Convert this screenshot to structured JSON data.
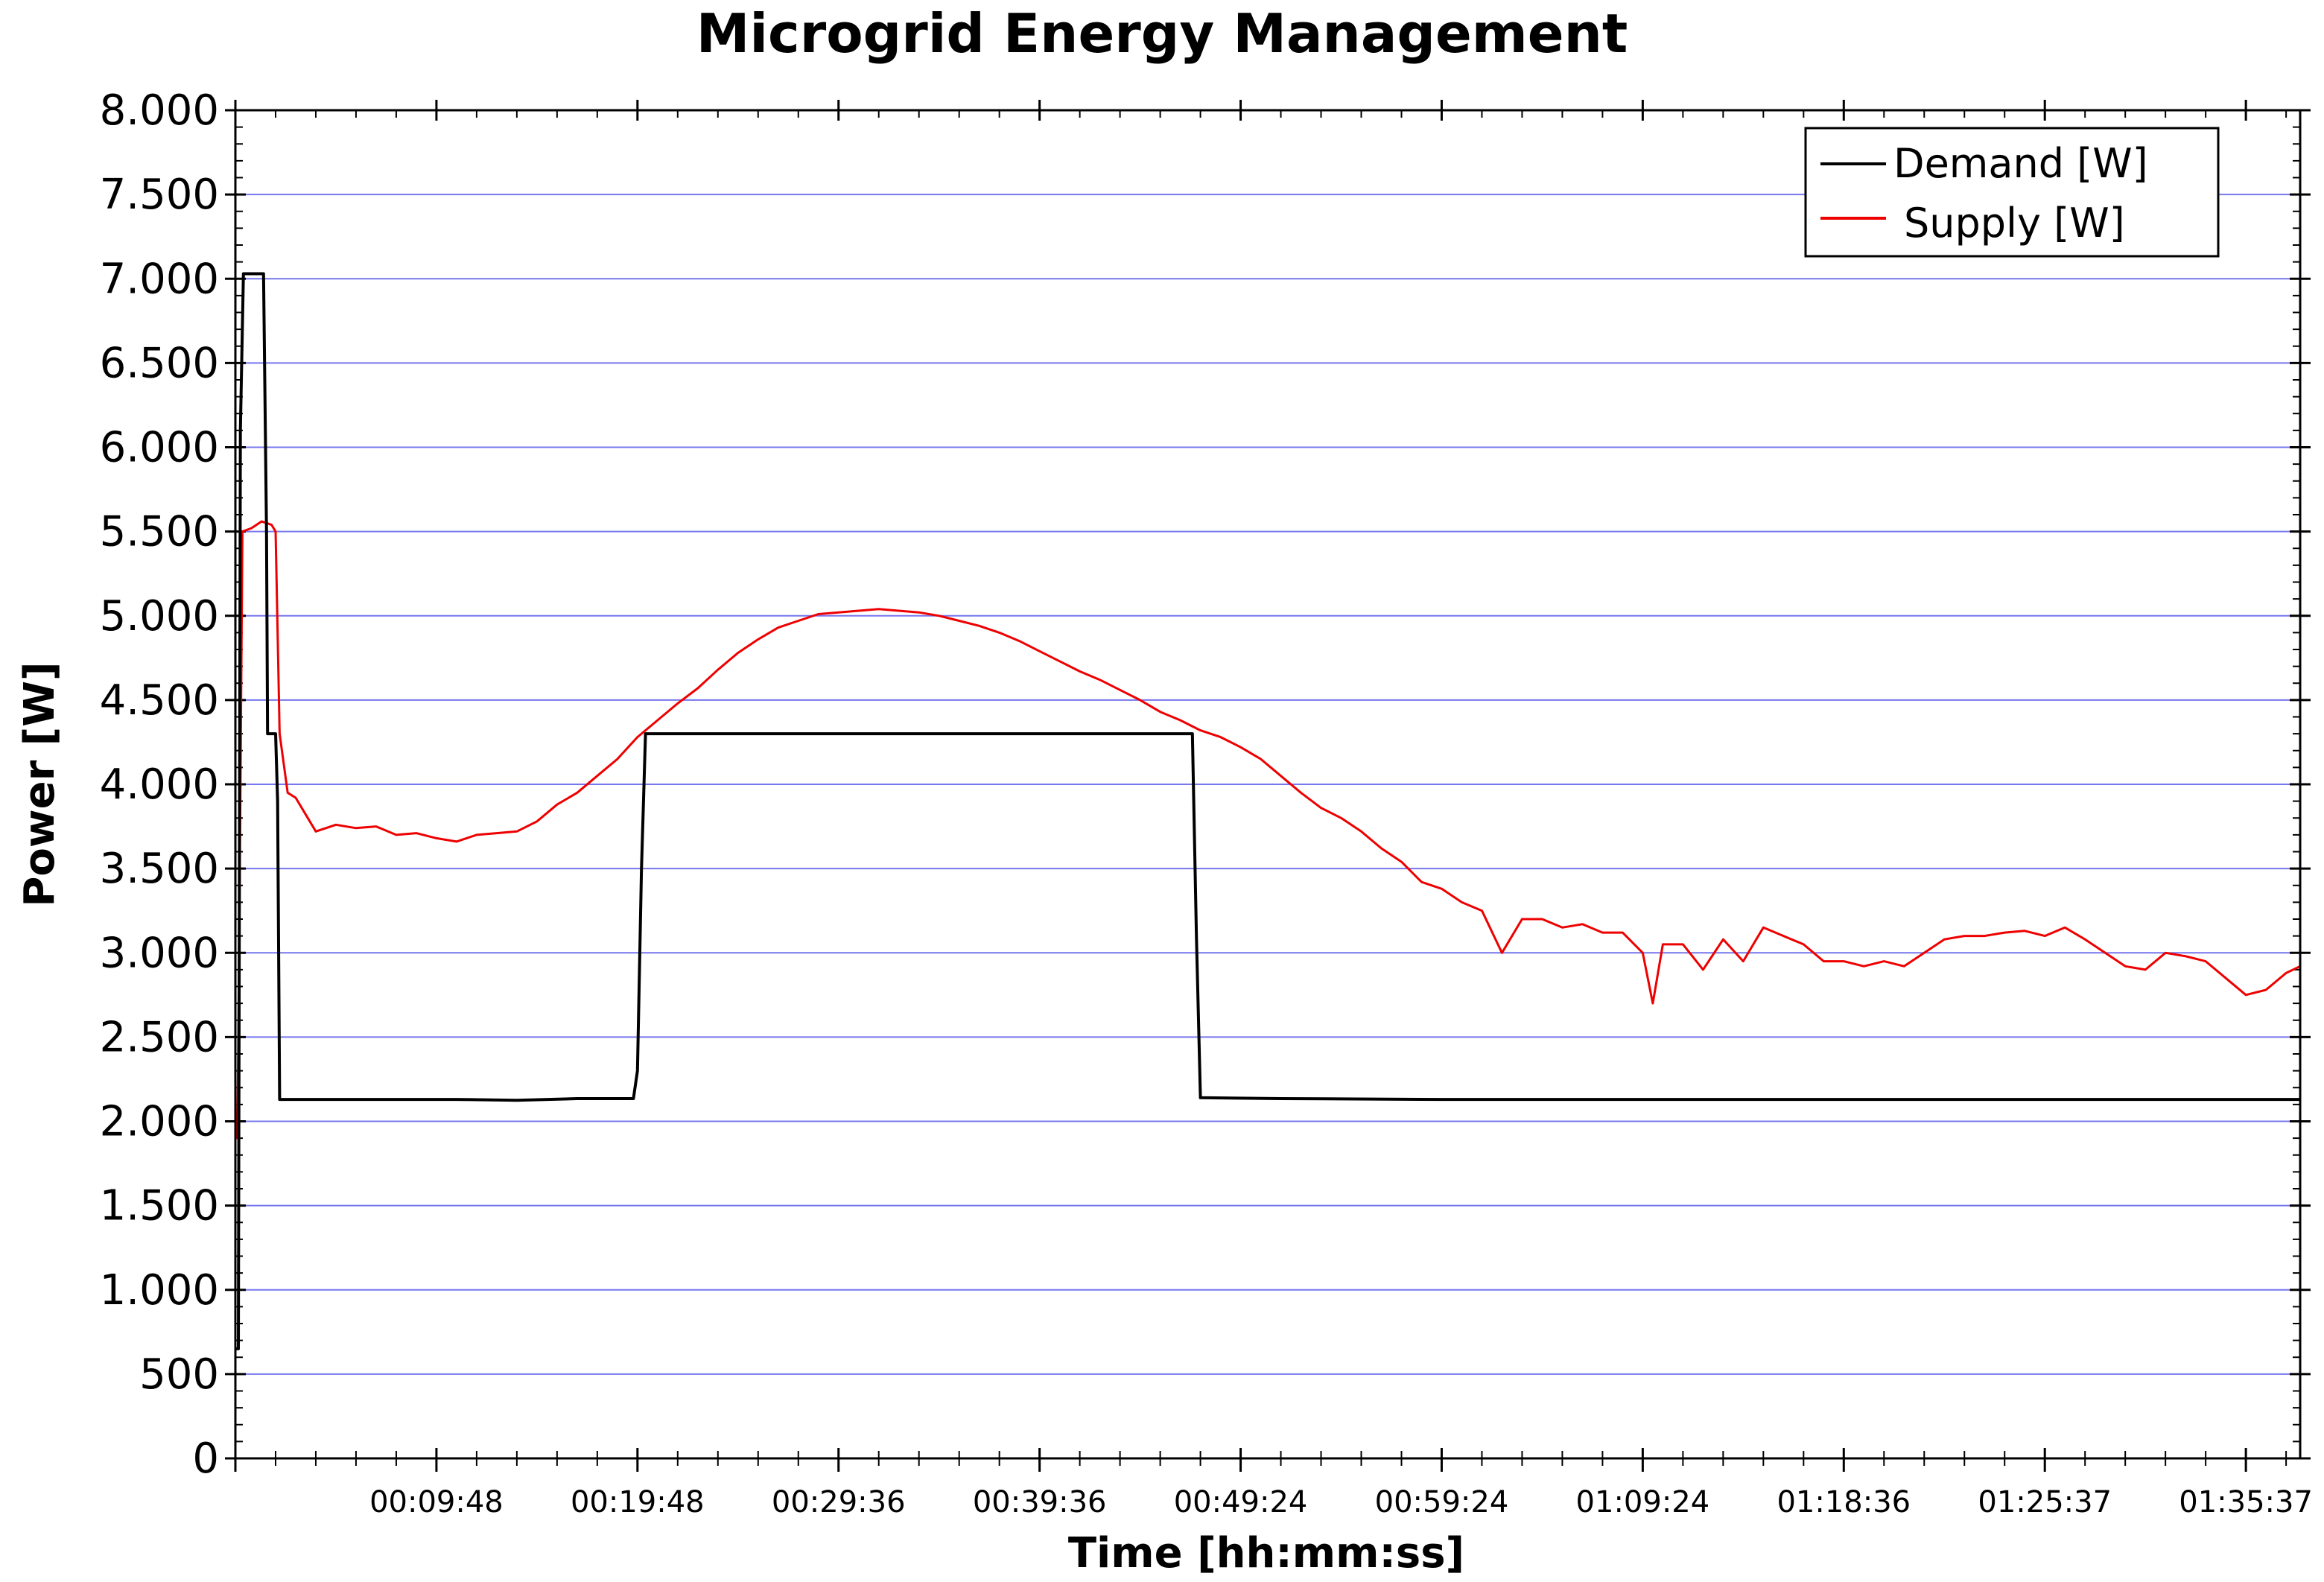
{
  "chart_data": {
    "type": "line",
    "title": "Microgrid Energy Management",
    "xlabel": "Time [hh:mm:ss]",
    "ylabel": "Power [W]",
    "x_unit": "minutes",
    "xlim": [
      0,
      102.7
    ],
    "ylim": [
      0,
      8000
    ],
    "grid": true,
    "grid_color": "#7777ee",
    "legend_position": "top-right",
    "x_ticks": [
      {
        "value": 10.0,
        "label": "00:09:48"
      },
      {
        "value": 20.0,
        "label": "00:19:48"
      },
      {
        "value": 30.0,
        "label": "00:29:36"
      },
      {
        "value": 40.0,
        "label": "00:39:36"
      },
      {
        "value": 50.0,
        "label": "00:49:24"
      },
      {
        "value": 60.0,
        "label": "00:59:24"
      },
      {
        "value": 70.0,
        "label": "01:09:24"
      },
      {
        "value": 80.0,
        "label": "01:18:36"
      },
      {
        "value": 90.0,
        "label": "01:25:37"
      },
      {
        "value": 100.0,
        "label": "01:35:37"
      }
    ],
    "y_ticks": [
      {
        "value": 0,
        "label": "0"
      },
      {
        "value": 500,
        "label": "500"
      },
      {
        "value": 1000,
        "label": "1.000"
      },
      {
        "value": 1500,
        "label": "1.500"
      },
      {
        "value": 2000,
        "label": "2.000"
      },
      {
        "value": 2500,
        "label": "2.500"
      },
      {
        "value": 3000,
        "label": "3.000"
      },
      {
        "value": 3500,
        "label": "3.500"
      },
      {
        "value": 4000,
        "label": "4.000"
      },
      {
        "value": 4500,
        "label": "4.500"
      },
      {
        "value": 5000,
        "label": "5.000"
      },
      {
        "value": 5500,
        "label": "5.500"
      },
      {
        "value": 6000,
        "label": "6.000"
      },
      {
        "value": 6500,
        "label": "6.500"
      },
      {
        "value": 7000,
        "label": "7.000"
      },
      {
        "value": 7500,
        "label": "7.500"
      },
      {
        "value": 8000,
        "label": "8.000"
      }
    ],
    "series": [
      {
        "name": "Demand [W]",
        "color": "#000000",
        "points": [
          [
            0.0,
            650
          ],
          [
            0.15,
            650
          ],
          [
            0.25,
            6100
          ],
          [
            0.4,
            7030
          ],
          [
            1.4,
            7030
          ],
          [
            1.55,
            5500
          ],
          [
            1.6,
            4300
          ],
          [
            2.0,
            4300
          ],
          [
            2.1,
            3900
          ],
          [
            2.2,
            2130
          ],
          [
            5.0,
            2130
          ],
          [
            8.0,
            2130
          ],
          [
            11.0,
            2130
          ],
          [
            14.0,
            2125
          ],
          [
            17.0,
            2135
          ],
          [
            19.8,
            2135
          ],
          [
            20.0,
            2300
          ],
          [
            20.2,
            3500
          ],
          [
            20.4,
            4300
          ],
          [
            25.0,
            4300
          ],
          [
            30.0,
            4300
          ],
          [
            35.0,
            4300
          ],
          [
            40.0,
            4300
          ],
          [
            45.0,
            4300
          ],
          [
            47.6,
            4300
          ],
          [
            47.8,
            3100
          ],
          [
            48.0,
            2140
          ],
          [
            52.0,
            2135
          ],
          [
            60.0,
            2130
          ],
          [
            70.0,
            2130
          ],
          [
            80.0,
            2130
          ],
          [
            90.0,
            2130
          ],
          [
            100.0,
            2130
          ],
          [
            102.7,
            2130
          ]
        ]
      },
      {
        "name": "Supply [W]",
        "color": "#ee0000",
        "points": [
          [
            0.0,
            1950
          ],
          [
            0.1,
            1900
          ],
          [
            0.2,
            3200
          ],
          [
            0.35,
            5500
          ],
          [
            0.8,
            5520
          ],
          [
            1.3,
            5560
          ],
          [
            1.8,
            5540
          ],
          [
            2.0,
            5500
          ],
          [
            2.2,
            4300
          ],
          [
            2.6,
            3950
          ],
          [
            3.0,
            3920
          ],
          [
            3.5,
            3820
          ],
          [
            4.0,
            3720
          ],
          [
            5.0,
            3760
          ],
          [
            6.0,
            3740
          ],
          [
            7.0,
            3750
          ],
          [
            8.0,
            3700
          ],
          [
            9.0,
            3710
          ],
          [
            10.0,
            3680
          ],
          [
            11.0,
            3660
          ],
          [
            12.0,
            3700
          ],
          [
            13.0,
            3710
          ],
          [
            14.0,
            3720
          ],
          [
            15.0,
            3780
          ],
          [
            16.0,
            3880
          ],
          [
            17.0,
            3950
          ],
          [
            18.0,
            4050
          ],
          [
            19.0,
            4150
          ],
          [
            20.0,
            4280
          ],
          [
            21.0,
            4380
          ],
          [
            22.0,
            4480
          ],
          [
            23.0,
            4570
          ],
          [
            24.0,
            4680
          ],
          [
            25.0,
            4780
          ],
          [
            26.0,
            4860
          ],
          [
            27.0,
            4930
          ],
          [
            28.0,
            4970
          ],
          [
            29.0,
            5010
          ],
          [
            30.0,
            5020
          ],
          [
            31.0,
            5030
          ],
          [
            32.0,
            5040
          ],
          [
            33.0,
            5030
          ],
          [
            34.0,
            5020
          ],
          [
            35.0,
            5000
          ],
          [
            36.0,
            4970
          ],
          [
            37.0,
            4940
          ],
          [
            38.0,
            4900
          ],
          [
            39.0,
            4850
          ],
          [
            40.0,
            4790
          ],
          [
            41.0,
            4730
          ],
          [
            42.0,
            4670
          ],
          [
            43.0,
            4620
          ],
          [
            44.0,
            4560
          ],
          [
            45.0,
            4500
          ],
          [
            46.0,
            4430
          ],
          [
            47.0,
            4380
          ],
          [
            48.0,
            4320
          ],
          [
            49.0,
            4280
          ],
          [
            50.0,
            4220
          ],
          [
            51.0,
            4150
          ],
          [
            52.0,
            4050
          ],
          [
            53.0,
            3950
          ],
          [
            54.0,
            3860
          ],
          [
            55.0,
            3800
          ],
          [
            56.0,
            3720
          ],
          [
            57.0,
            3620
          ],
          [
            58.0,
            3540
          ],
          [
            59.0,
            3420
          ],
          [
            60.0,
            3380
          ],
          [
            61.0,
            3300
          ],
          [
            62.0,
            3250
          ],
          [
            63.0,
            3000
          ],
          [
            64.0,
            3200
          ],
          [
            65.0,
            3200
          ],
          [
            66.0,
            3150
          ],
          [
            67.0,
            3170
          ],
          [
            68.0,
            3120
          ],
          [
            69.0,
            3120
          ],
          [
            70.0,
            3000
          ],
          [
            70.5,
            2700
          ],
          [
            71.0,
            3050
          ],
          [
            72.0,
            3050
          ],
          [
            73.0,
            2900
          ],
          [
            74.0,
            3080
          ],
          [
            75.0,
            2950
          ],
          [
            76.0,
            3150
          ],
          [
            77.0,
            3100
          ],
          [
            78.0,
            3050
          ],
          [
            79.0,
            2950
          ],
          [
            80.0,
            2950
          ],
          [
            81.0,
            2920
          ],
          [
            82.0,
            2950
          ],
          [
            83.0,
            2920
          ],
          [
            84.0,
            3000
          ],
          [
            85.0,
            3080
          ],
          [
            86.0,
            3100
          ],
          [
            87.0,
            3100
          ],
          [
            88.0,
            3120
          ],
          [
            89.0,
            3130
          ],
          [
            90.0,
            3100
          ],
          [
            91.0,
            3150
          ],
          [
            92.0,
            3080
          ],
          [
            93.0,
            3000
          ],
          [
            94.0,
            2920
          ],
          [
            95.0,
            2900
          ],
          [
            96.0,
            3000
          ],
          [
            97.0,
            2980
          ],
          [
            98.0,
            2950
          ],
          [
            99.0,
            2850
          ],
          [
            100.0,
            2750
          ],
          [
            101.0,
            2780
          ],
          [
            102.0,
            2880
          ],
          [
            102.7,
            2920
          ]
        ]
      }
    ]
  }
}
